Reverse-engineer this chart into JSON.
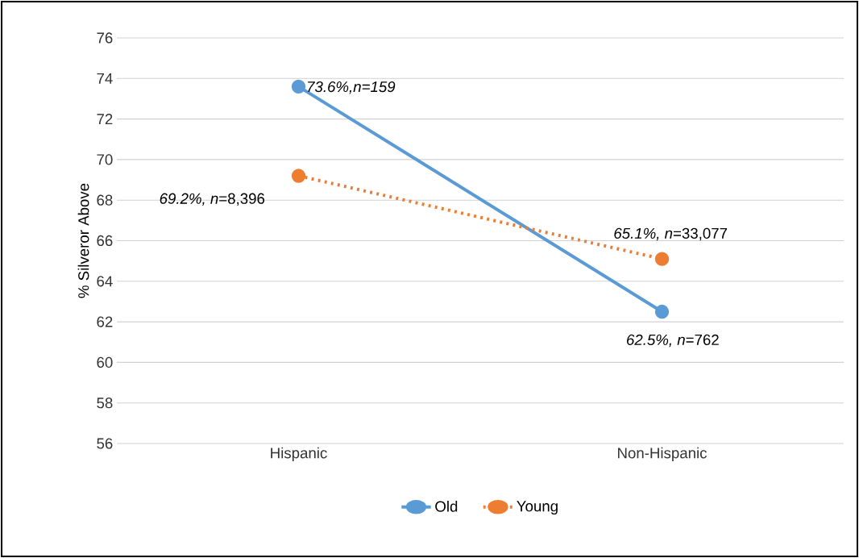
{
  "chart_data": {
    "type": "line",
    "ylabel": "% Silveror Above",
    "categories": [
      "Hispanic",
      "Non-Hispanic"
    ],
    "series": [
      {
        "name": "Old",
        "color": "#5b9bd5",
        "values": [
          73.6,
          62.5
        ],
        "line_style": "solid"
      },
      {
        "name": "Young",
        "color": "#ed7d31",
        "values": [
          69.2,
          65.1
        ],
        "line_style": "dotted"
      }
    ],
    "ylim": [
      56,
      76
    ],
    "yticks": [
      56,
      58,
      60,
      62,
      64,
      66,
      68,
      70,
      72,
      74,
      76
    ],
    "grid": "y",
    "legend": "bottom",
    "marker": "circle",
    "annotations": [
      {
        "text": "*73.6%,n=159*",
        "x": "Hispanic",
        "y": 73.6
      },
      {
        "text": "*69.2%, n*=8,396",
        "x": "Hispanic",
        "y": 69.2
      },
      {
        "text": "*65.1%, n*=33,077",
        "x": "Non-Hispanic",
        "y": 65.1
      },
      {
        "text": "*62.5%, n*=762",
        "x": "Non-Hispanic",
        "y": 62.5
      }
    ]
  }
}
